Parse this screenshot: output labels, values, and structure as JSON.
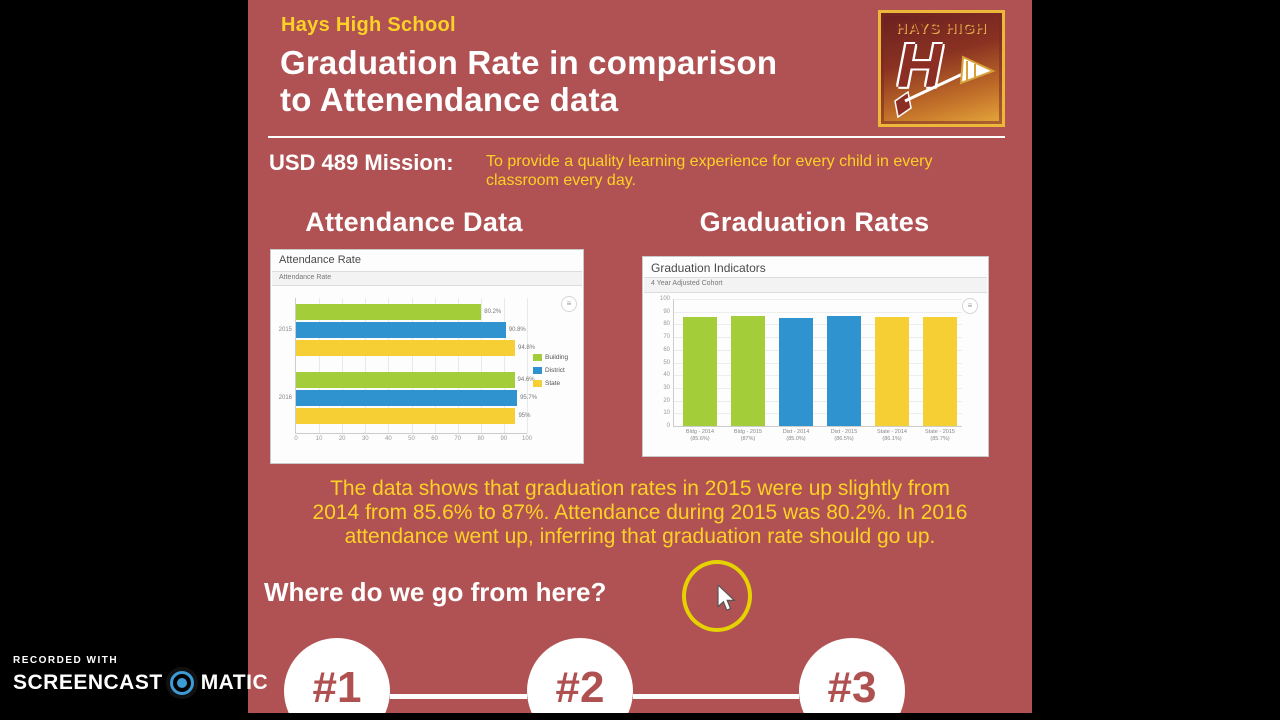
{
  "header": {
    "school": "Hays High School",
    "title_line1": "Graduation Rate in comparison",
    "title_line2": "to Attenendance data",
    "logo": {
      "text": "HAYS HIGH",
      "letter": "H"
    }
  },
  "mission": {
    "label": "USD 489 Mission:",
    "text": "To provide a quality learning experience for every child in every classroom every day."
  },
  "sections": {
    "attendance": "Attendance Data",
    "graduation": "Graduation Rates"
  },
  "icons": {
    "chart_menu": "≡"
  },
  "chart_data": [
    {
      "id": "attendance",
      "type": "bar",
      "orientation": "horizontal",
      "title": "Attendance Rate",
      "subtitle": "Attendance Rate",
      "categories": [
        "2015",
        "2016"
      ],
      "series": [
        {
          "name": "Building",
          "color": "#a3cd39",
          "values": [
            80.2,
            94.6
          ],
          "labels": [
            "80.2%",
            "94.6%"
          ]
        },
        {
          "name": "District",
          "color": "#2f93d0",
          "values": [
            90.8,
            95.7
          ],
          "labels": [
            "90.8%",
            "95.7%"
          ]
        },
        {
          "name": "State",
          "color": "#f6cf35",
          "values": [
            94.8,
            95.0
          ],
          "labels": [
            "94.8%",
            "95%"
          ]
        }
      ],
      "xticks": [
        0,
        10,
        20,
        30,
        40,
        50,
        60,
        70,
        80,
        90,
        100
      ],
      "xlim": [
        0,
        100
      ],
      "legend_position": "right",
      "grid": true
    },
    {
      "id": "graduation",
      "type": "bar",
      "orientation": "vertical",
      "title": "Graduation Indicators",
      "subtitle": "4 Year Adjusted Cohort",
      "categories": [
        "Bldg - 2014",
        "Bldg - 2015",
        "Dist - 2014",
        "Dist - 2015",
        "State - 2014",
        "State - 2015"
      ],
      "category_sublabels": [
        "(85.6%)",
        "(87%)",
        "(85.0%)",
        "(86.5%)",
        "(86.1%)",
        "(85.7%)"
      ],
      "values": [
        85.6,
        87,
        85.0,
        86.5,
        86.1,
        85.7
      ],
      "colors": [
        "#a3cd39",
        "#a3cd39",
        "#2f93d0",
        "#2f93d0",
        "#f6cf35",
        "#f6cf35"
      ],
      "yticks": [
        100,
        90,
        80,
        70,
        60,
        50,
        40,
        30,
        20,
        10,
        0
      ],
      "ylim": [
        0,
        100
      ],
      "grid": true
    }
  ],
  "analysis": {
    "lines": [
      "The data shows that graduation rates in 2015 were up slightly from",
      "2014 from 85.6% to 87%.  Attendance during 2015 was 80.2%.  In 2016",
      "attendance went up, inferring that graduation rate should go up."
    ]
  },
  "next_steps": {
    "heading": "Where do we go from here?",
    "steps": [
      "#1",
      "#2",
      "#3"
    ]
  },
  "watermark": {
    "line1": "RECORDED WITH",
    "brand_left": "SCREENCAST",
    "brand_right": "MATIC"
  },
  "colors": {
    "slide_background": "#b05253",
    "accent_yellow": "#fdd126",
    "series_green": "#a3cd39",
    "series_blue": "#2f93d0",
    "series_yellow": "#f6cf35",
    "highlight_ring": "#e6d200"
  }
}
